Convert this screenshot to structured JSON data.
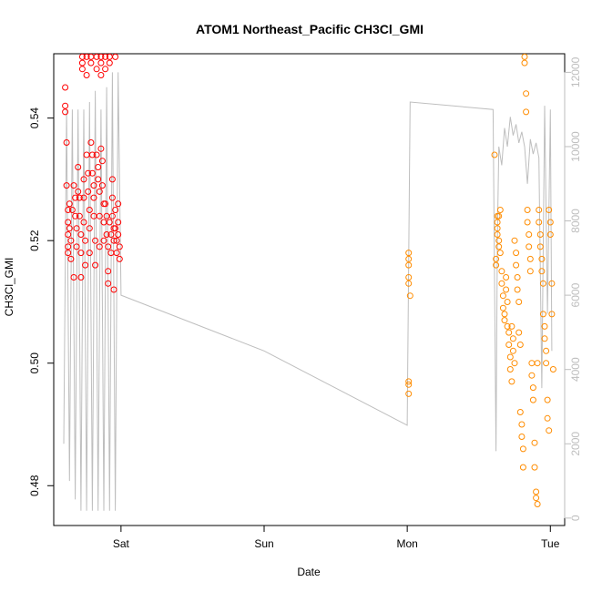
{
  "chart_data": {
    "type": "scatter",
    "title": "ATOM1 Northeast_Pacific CH3Cl_GMI",
    "xlabel": "Date",
    "ylabel": "CH3Cl_GMI",
    "ylabel_right": "",
    "x_unit": "days since Sat 00:00 (tick labels are day names)",
    "xlim": [
      -0.47,
      3.1
    ],
    "ylim": [
      0.4735,
      0.5505
    ],
    "y2lim": [
      -200,
      12500
    ],
    "x_ticks": [
      {
        "value": 0,
        "label": "Sat"
      },
      {
        "value": 1,
        "label": "Sun"
      },
      {
        "value": 2,
        "label": "Mon"
      },
      {
        "value": 3,
        "label": "Tue"
      }
    ],
    "y_ticks": [
      0.48,
      0.5,
      0.52,
      0.54
    ],
    "y_tick_labels": [
      "0.48",
      "0.50",
      "0.52",
      "0.54"
    ],
    "y2_ticks": [
      0,
      2000,
      4000,
      6000,
      8000,
      10000,
      12000
    ],
    "y2_tick_labels": [
      "0",
      "2000",
      "4000",
      "6000",
      "8000",
      "10000",
      "12000"
    ],
    "grid": false,
    "colors": {
      "series_1": "#ff0000",
      "series_2": "#ff8c00",
      "altitude_line": "#bebebe",
      "axis": "#000000",
      "right_axis": "#bebebe"
    },
    "series": [
      {
        "color": "#ff0000",
        "marker": "open-circle",
        "points": [
          [
            -0.39,
            0.545
          ],
          [
            -0.39,
            0.541
          ],
          [
            -0.39,
            0.542
          ],
          [
            -0.38,
            0.536
          ],
          [
            -0.38,
            0.529
          ],
          [
            -0.37,
            0.525
          ],
          [
            -0.37,
            0.523
          ],
          [
            -0.37,
            0.521
          ],
          [
            -0.37,
            0.519
          ],
          [
            -0.37,
            0.518
          ],
          [
            -0.36,
            0.522
          ],
          [
            -0.36,
            0.526
          ],
          [
            -0.35,
            0.52
          ],
          [
            -0.35,
            0.517
          ],
          [
            -0.34,
            0.525
          ],
          [
            -0.33,
            0.529
          ],
          [
            -0.33,
            0.514
          ],
          [
            -0.32,
            0.527
          ],
          [
            -0.32,
            0.524
          ],
          [
            -0.31,
            0.522
          ],
          [
            -0.31,
            0.519
          ],
          [
            -0.3,
            0.532
          ],
          [
            -0.3,
            0.528
          ],
          [
            -0.29,
            0.527
          ],
          [
            -0.29,
            0.524
          ],
          [
            -0.28,
            0.521
          ],
          [
            -0.28,
            0.518
          ],
          [
            -0.28,
            0.514
          ],
          [
            -0.27,
            0.55
          ],
          [
            -0.27,
            0.549
          ],
          [
            -0.27,
            0.548
          ],
          [
            -0.26,
            0.53
          ],
          [
            -0.26,
            0.527
          ],
          [
            -0.26,
            0.523
          ],
          [
            -0.25,
            0.52
          ],
          [
            -0.25,
            0.516
          ],
          [
            -0.24,
            0.55
          ],
          [
            -0.24,
            0.547
          ],
          [
            -0.24,
            0.534
          ],
          [
            -0.23,
            0.531
          ],
          [
            -0.23,
            0.528
          ],
          [
            -0.22,
            0.525
          ],
          [
            -0.22,
            0.522
          ],
          [
            -0.22,
            0.518
          ],
          [
            -0.21,
            0.55
          ],
          [
            -0.21,
            0.549
          ],
          [
            -0.21,
            0.536
          ],
          [
            -0.2,
            0.534
          ],
          [
            -0.2,
            0.531
          ],
          [
            -0.19,
            0.529
          ],
          [
            -0.19,
            0.527
          ],
          [
            -0.19,
            0.524
          ],
          [
            -0.18,
            0.52
          ],
          [
            -0.18,
            0.516
          ],
          [
            -0.17,
            0.55
          ],
          [
            -0.17,
            0.548
          ],
          [
            -0.17,
            0.534
          ],
          [
            -0.16,
            0.532
          ],
          [
            -0.16,
            0.53
          ],
          [
            -0.15,
            0.528
          ],
          [
            -0.15,
            0.524
          ],
          [
            -0.15,
            0.519
          ],
          [
            -0.14,
            0.55
          ],
          [
            -0.14,
            0.549
          ],
          [
            -0.14,
            0.547
          ],
          [
            -0.14,
            0.535
          ],
          [
            -0.13,
            0.533
          ],
          [
            -0.13,
            0.529
          ],
          [
            -0.12,
            0.526
          ],
          [
            -0.12,
            0.523
          ],
          [
            -0.12,
            0.52
          ],
          [
            -0.11,
            0.55
          ],
          [
            -0.11,
            0.548
          ],
          [
            -0.11,
            0.526
          ],
          [
            -0.1,
            0.524
          ],
          [
            -0.1,
            0.521
          ],
          [
            -0.09,
            0.519
          ],
          [
            -0.09,
            0.515
          ],
          [
            -0.09,
            0.513
          ],
          [
            -0.08,
            0.55
          ],
          [
            -0.08,
            0.549
          ],
          [
            -0.08,
            0.523
          ],
          [
            -0.07,
            0.521
          ],
          [
            -0.07,
            0.518
          ],
          [
            -0.06,
            0.53
          ],
          [
            -0.06,
            0.527
          ],
          [
            -0.06,
            0.524
          ],
          [
            -0.05,
            0.522
          ],
          [
            -0.05,
            0.52
          ],
          [
            -0.05,
            0.512
          ],
          [
            -0.04,
            0.55
          ],
          [
            -0.04,
            0.525
          ],
          [
            -0.04,
            0.522
          ],
          [
            -0.03,
            0.52
          ],
          [
            -0.03,
            0.518
          ],
          [
            -0.02,
            0.526
          ],
          [
            -0.02,
            0.523
          ],
          [
            -0.02,
            0.521
          ],
          [
            -0.01,
            0.519
          ],
          [
            -0.01,
            0.517
          ]
        ]
      },
      {
        "color": "#ff8c00",
        "marker": "open-circle",
        "points": [
          [
            2.01,
            0.518
          ],
          [
            2.01,
            0.517
          ],
          [
            2.01,
            0.516
          ],
          [
            2.01,
            0.514
          ],
          [
            2.01,
            0.513
          ],
          [
            2.02,
            0.511
          ],
          [
            2.01,
            0.497
          ],
          [
            2.01,
            0.4965
          ],
          [
            2.01,
            0.495
          ],
          [
            2.61,
            0.534
          ],
          [
            2.62,
            0.517
          ],
          [
            2.62,
            0.516
          ],
          [
            2.63,
            0.524
          ],
          [
            2.63,
            0.523
          ],
          [
            2.63,
            0.522
          ],
          [
            2.63,
            0.521
          ],
          [
            2.64,
            0.52
          ],
          [
            2.64,
            0.519
          ],
          [
            2.64,
            0.524
          ],
          [
            2.65,
            0.525
          ],
          [
            2.65,
            0.518
          ],
          [
            2.66,
            0.515
          ],
          [
            2.66,
            0.513
          ],
          [
            2.67,
            0.511
          ],
          [
            2.67,
            0.509
          ],
          [
            2.68,
            0.508
          ],
          [
            2.68,
            0.507
          ],
          [
            2.69,
            0.514
          ],
          [
            2.69,
            0.512
          ],
          [
            2.7,
            0.51
          ],
          [
            2.7,
            0.506
          ],
          [
            2.71,
            0.505
          ],
          [
            2.71,
            0.503
          ],
          [
            2.72,
            0.501
          ],
          [
            2.72,
            0.499
          ],
          [
            2.73,
            0.497
          ],
          [
            2.73,
            0.506
          ],
          [
            2.74,
            0.504
          ],
          [
            2.74,
            0.502
          ],
          [
            2.75,
            0.5
          ],
          [
            2.75,
            0.52
          ],
          [
            2.76,
            0.518
          ],
          [
            2.76,
            0.516
          ],
          [
            2.77,
            0.514
          ],
          [
            2.77,
            0.512
          ],
          [
            2.78,
            0.51
          ],
          [
            2.78,
            0.505
          ],
          [
            2.79,
            0.503
          ],
          [
            2.79,
            0.492
          ],
          [
            2.8,
            0.49
          ],
          [
            2.8,
            0.488
          ],
          [
            2.81,
            0.486
          ],
          [
            2.81,
            0.483
          ],
          [
            2.82,
            0.55
          ],
          [
            2.82,
            0.549
          ],
          [
            2.83,
            0.544
          ],
          [
            2.83,
            0.541
          ],
          [
            2.84,
            0.525
          ],
          [
            2.84,
            0.523
          ],
          [
            2.85,
            0.521
          ],
          [
            2.85,
            0.519
          ],
          [
            2.86,
            0.517
          ],
          [
            2.86,
            0.515
          ],
          [
            2.87,
            0.5
          ],
          [
            2.87,
            0.498
          ],
          [
            2.88,
            0.496
          ],
          [
            2.88,
            0.494
          ],
          [
            2.89,
            0.487
          ],
          [
            2.89,
            0.483
          ],
          [
            2.9,
            0.479
          ],
          [
            2.9,
            0.478
          ],
          [
            2.91,
            0.477
          ],
          [
            2.91,
            0.5
          ],
          [
            2.92,
            0.525
          ],
          [
            2.92,
            0.523
          ],
          [
            2.93,
            0.521
          ],
          [
            2.93,
            0.519
          ],
          [
            2.94,
            0.517
          ],
          [
            2.94,
            0.515
          ],
          [
            2.95,
            0.513
          ],
          [
            2.95,
            0.508
          ],
          [
            2.96,
            0.506
          ],
          [
            2.96,
            0.504
          ],
          [
            2.97,
            0.502
          ],
          [
            2.97,
            0.5
          ],
          [
            2.98,
            0.494
          ],
          [
            2.98,
            0.491
          ],
          [
            2.99,
            0.489
          ],
          [
            2.99,
            0.525
          ],
          [
            3.0,
            0.523
          ],
          [
            3.0,
            0.521
          ],
          [
            3.01,
            0.513
          ],
          [
            3.01,
            0.508
          ],
          [
            3.02,
            0.499
          ]
        ]
      }
    ],
    "altitude_line": {
      "color": "#bebebe",
      "axis": "right",
      "points": [
        [
          -0.4,
          2000
        ],
        [
          -0.38,
          11000
        ],
        [
          -0.36,
          1000
        ],
        [
          -0.34,
          11000
        ],
        [
          -0.32,
          500
        ],
        [
          -0.3,
          11000
        ],
        [
          -0.28,
          200
        ],
        [
          -0.26,
          11000
        ],
        [
          -0.24,
          200
        ],
        [
          -0.22,
          11200
        ],
        [
          -0.2,
          200
        ],
        [
          -0.18,
          11500
        ],
        [
          -0.16,
          200
        ],
        [
          -0.14,
          11000
        ],
        [
          -0.12,
          200
        ],
        [
          -0.1,
          11600
        ],
        [
          -0.08,
          200
        ],
        [
          -0.06,
          12000
        ],
        [
          -0.04,
          200
        ],
        [
          -0.02,
          12000
        ],
        [
          0.0,
          6000
        ],
        [
          1.0,
          4500
        ],
        [
          2.0,
          2500
        ],
        [
          2.02,
          11200
        ],
        [
          2.6,
          11000
        ],
        [
          2.62,
          1800
        ],
        [
          2.63,
          7500
        ],
        [
          2.64,
          10000
        ],
        [
          2.66,
          9500
        ],
        [
          2.68,
          10500
        ],
        [
          2.7,
          10000
        ],
        [
          2.72,
          10800
        ],
        [
          2.74,
          10300
        ],
        [
          2.76,
          10600
        ],
        [
          2.78,
          10100
        ],
        [
          2.8,
          10400
        ],
        [
          2.82,
          10000
        ],
        [
          2.84,
          9000
        ],
        [
          2.86,
          10200
        ],
        [
          2.88,
          9800
        ],
        [
          2.9,
          10100
        ],
        [
          2.92,
          9700
        ],
        [
          2.94,
          3500
        ],
        [
          2.96,
          11100
        ],
        [
          2.98,
          5500
        ],
        [
          3.0,
          11000
        ],
        [
          3.01,
          4500
        ]
      ]
    }
  }
}
